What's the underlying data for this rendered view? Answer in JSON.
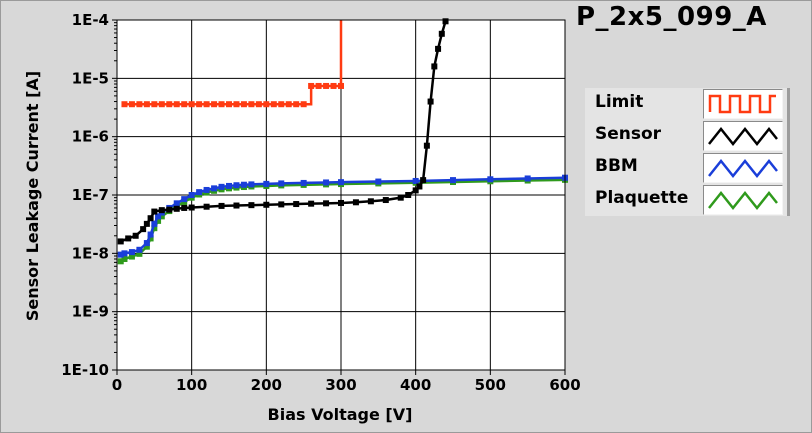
{
  "title": "P_2x5_099_A",
  "chart_data": {
    "type": "line",
    "xlabel": "Bias Voltage [V]",
    "ylabel": "Sensor Leakage Current [A]",
    "xlim": [
      0,
      600
    ],
    "ylim": [
      1e-10,
      0.0001
    ],
    "yscale": "log",
    "grid": true,
    "legend_position": "right",
    "x_ticks": [
      0,
      100,
      200,
      300,
      400,
      500,
      600
    ],
    "y_ticks": [
      1e-10,
      1e-09,
      1e-08,
      1e-07,
      1e-06,
      1e-05,
      0.0001
    ],
    "x_tick_labels": [
      "0",
      "100",
      "200",
      "300",
      "400",
      "500",
      "600"
    ],
    "y_tick_labels": [
      "1E-10",
      "1E-9",
      "1E-8",
      "1E-7",
      "1E-6",
      "1E-5",
      "1E-4"
    ],
    "series": [
      {
        "name": "Limit",
        "color": "#ff3b12",
        "step": true,
        "x": [
          10,
          20,
          30,
          40,
          50,
          60,
          70,
          80,
          90,
          100,
          110,
          120,
          130,
          140,
          150,
          160,
          170,
          180,
          190,
          200,
          210,
          220,
          230,
          240,
          250,
          260,
          270,
          280,
          290,
          300,
          300
        ],
        "y": [
          3.6e-06,
          3.6e-06,
          3.6e-06,
          3.6e-06,
          3.6e-06,
          3.6e-06,
          3.6e-06,
          3.6e-06,
          3.6e-06,
          3.6e-06,
          3.6e-06,
          3.6e-06,
          3.6e-06,
          3.6e-06,
          3.6e-06,
          3.6e-06,
          3.6e-06,
          3.6e-06,
          3.6e-06,
          3.6e-06,
          3.6e-06,
          3.6e-06,
          3.6e-06,
          3.6e-06,
          3.6e-06,
          7.4e-06,
          7.4e-06,
          7.4e-06,
          7.4e-06,
          7.4e-06,
          0.0001
        ]
      },
      {
        "name": "Sensor",
        "color": "#000000",
        "step": false,
        "x": [
          5,
          15,
          25,
          35,
          40,
          45,
          50,
          60,
          70,
          80,
          90,
          100,
          120,
          140,
          160,
          180,
          200,
          220,
          240,
          260,
          280,
          300,
          320,
          340,
          360,
          380,
          390,
          400,
          405,
          410,
          415,
          420,
          425,
          430,
          435,
          440
        ],
        "y": [
          1.6e-08,
          1.8e-08,
          2e-08,
          2.6e-08,
          3.2e-08,
          4e-08,
          5.2e-08,
          5.5e-08,
          5.6e-08,
          5.8e-08,
          6e-08,
          6.1e-08,
          6.3e-08,
          6.5e-08,
          6.6e-08,
          6.7e-08,
          6.8e-08,
          6.9e-08,
          7e-08,
          7.1e-08,
          7.2e-08,
          7.3e-08,
          7.5e-08,
          7.8e-08,
          8.2e-08,
          9e-08,
          1e-07,
          1.2e-07,
          1.4e-07,
          1.8e-07,
          7e-07,
          4e-06,
          1.6e-05,
          3.2e-05,
          5.8e-05,
          9.5e-05
        ]
      },
      {
        "name": "BBM",
        "color": "#1a3ed9",
        "step": false,
        "x": [
          5,
          10,
          20,
          30,
          40,
          45,
          50,
          55,
          60,
          70,
          80,
          90,
          100,
          110,
          120,
          130,
          140,
          150,
          160,
          170,
          180,
          200,
          220,
          250,
          280,
          300,
          350,
          400,
          450,
          500,
          550,
          600
        ],
        "y": [
          9.5e-09,
          1e-08,
          1.05e-08,
          1.15e-08,
          1.5e-08,
          2.1e-08,
          3.2e-08,
          4.3e-08,
          5e-08,
          6e-08,
          7.2e-08,
          8.5e-08,
          1e-07,
          1.12e-07,
          1.22e-07,
          1.3e-07,
          1.38e-07,
          1.43e-07,
          1.47e-07,
          1.5e-07,
          1.52e-07,
          1.55e-07,
          1.58e-07,
          1.61e-07,
          1.64e-07,
          1.66e-07,
          1.7e-07,
          1.74e-07,
          1.8e-07,
          1.86e-07,
          1.92e-07,
          1.98e-07
        ]
      },
      {
        "name": "Plaquette",
        "color": "#2f9a1c",
        "step": false,
        "x": [
          5,
          10,
          20,
          30,
          40,
          45,
          50,
          55,
          60,
          70,
          80,
          90,
          100,
          110,
          120,
          130,
          140,
          150,
          160,
          170,
          180,
          200,
          220,
          250,
          280,
          300,
          350,
          400,
          450,
          500,
          550,
          600
        ],
        "y": [
          7.3e-09,
          8e-09,
          8.8e-09,
          9.8e-09,
          1.3e-08,
          1.8e-08,
          2.7e-08,
          3.6e-08,
          4.3e-08,
          5.3e-08,
          6.4e-08,
          7.6e-08,
          9e-08,
          1.02e-07,
          1.1e-07,
          1.18e-07,
          1.25e-07,
          1.3e-07,
          1.34e-07,
          1.37e-07,
          1.4e-07,
          1.43e-07,
          1.46e-07,
          1.49e-07,
          1.52e-07,
          1.54e-07,
          1.58e-07,
          1.62e-07,
          1.67e-07,
          1.72e-07,
          1.77e-07,
          1.82e-07
        ]
      }
    ]
  }
}
